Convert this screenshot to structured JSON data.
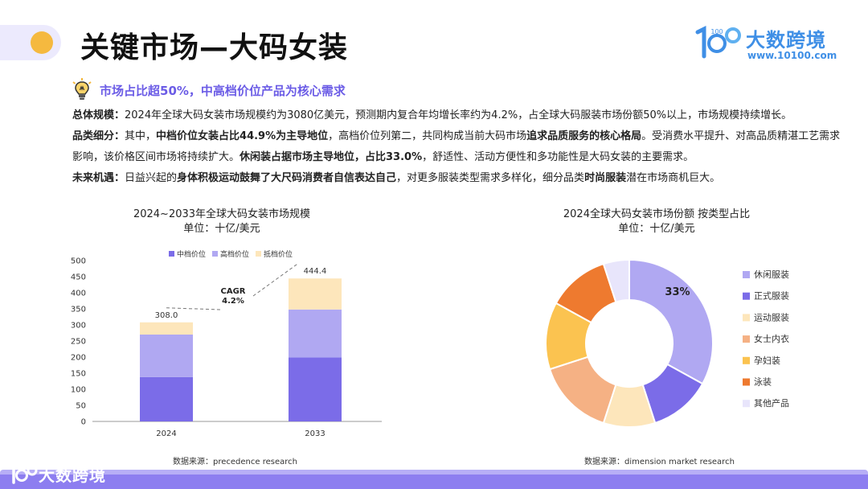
{
  "header": {
    "title": "关键市场—大码女装",
    "brand_name": "大数跨境",
    "brand_url": "www.10100.com",
    "brand_logo_text": "100",
    "subtitle": "市场占比超50%，中高档价位产品为核心需求"
  },
  "summary": {
    "p1_label": "总体规模：",
    "p1_text": "2024年全球大码女装市场规模约为3080亿美元，预测期内复合年均增长率约为4.2%，占全球大码服装市场份额50%以上，市场规模持续增长。",
    "p2_label": "品类细分：",
    "p2_t1": "其中，",
    "p2_b1": "中档价位女装占比44.9%为主导地位",
    "p2_t2": "，高档价位列第二，共同构成当前大码市场",
    "p2_b2": "追求品质服务的核心格局",
    "p2_t3": "。受消费水平提升、对高品质精湛工艺需求影响，该价格区间市场将持续扩大。",
    "p2_b3": "休闲装占据市场主导地位，占比33.0%",
    "p2_t4": "，舒适性、活动方便性和多功能性是大码女装的主要需求。",
    "p3_label": "未来机遇：",
    "p3_t1": "日益兴起的",
    "p3_b1": "身体积极运动鼓舞了大尺码消费者自信表达自己",
    "p3_t2": "，对更多服装类型需求多样化，细分品类",
    "p3_b2": "时尚服装",
    "p3_t3": "潜在市场商机巨大。"
  },
  "colors": {
    "accent": "#6b5ce6",
    "brand": "#3f8fe6",
    "dot": "#f5b93f"
  },
  "chart_data": [
    {
      "type": "bar",
      "stacked": true,
      "title": "2024~2033年全球大码女装市场规模",
      "subtitle": "单位：十亿/美元",
      "categories": [
        "2024",
        "2033"
      ],
      "series": [
        {
          "name": "中档价位",
          "values": [
            138,
            199
          ],
          "color": "#7b6ce8"
        },
        {
          "name": "高档价位",
          "values": [
            132,
            149
          ],
          "color": "#b0a8f2"
        },
        {
          "name": "抵档价位",
          "values": [
            38,
            96.4
          ],
          "color": "#fde6bb"
        }
      ],
      "totals": [
        "308.0",
        "444.4"
      ],
      "annotation": "CAGR\n4.2%",
      "ylim": [
        0,
        500
      ],
      "yticks": [
        0,
        50,
        100,
        150,
        200,
        250,
        300,
        350,
        400,
        450,
        500
      ],
      "legend": "top",
      "grid": false,
      "source": "数据来源：precedence research"
    },
    {
      "type": "pie",
      "donut": true,
      "title": "2024全球大码女装市场份额 按类型占比",
      "subtitle": "单位：十亿/美元",
      "labels": [
        "休闲服装",
        "正式服装",
        "运动服装",
        "女士内衣",
        "孕妇装",
        "泳装",
        "其他产品"
      ],
      "values": [
        33,
        12,
        10,
        15,
        13,
        12,
        5
      ],
      "colors": [
        "#b0a8f2",
        "#7b6ce8",
        "#fde6bb",
        "#f5b184",
        "#fbc350",
        "#ee7a2f",
        "#e8e5fb"
      ],
      "slice_label": "33%",
      "legend": "right",
      "source": "数据来源：dimension market  research"
    }
  ]
}
